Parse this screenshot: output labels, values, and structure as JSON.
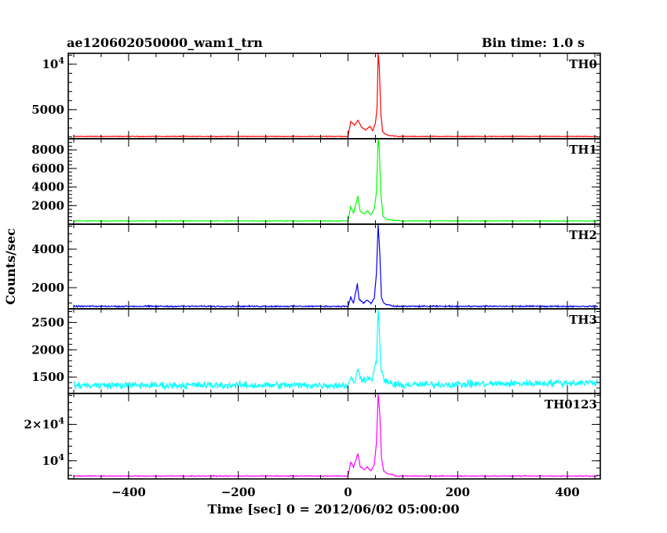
{
  "chart_data": {
    "type": "line",
    "title_left": "ae120602050000_wam1_trn",
    "title_right": "Bin time: 1.0 s",
    "xlabel": "Time [sec] 0 = 2012/06/02 05:00:00",
    "ylabel": "Counts/sec",
    "xlim": [
      -510,
      460
    ],
    "xticks": [
      -400,
      -200,
      0,
      200,
      400
    ],
    "grid": false,
    "panels": [
      {
        "name": "TH0",
        "color": "#ff0000",
        "ylim": [
          1800,
          11200
        ],
        "yticks": [
          5000,
          10000
        ],
        "ytick_labels": [
          "5000",
          "10^4"
        ],
        "baseline": 2050,
        "noise": 30,
        "slope": 0,
        "points": [
          [
            0,
            2050
          ],
          [
            5,
            3700
          ],
          [
            12,
            3300
          ],
          [
            18,
            3850
          ],
          [
            25,
            3050
          ],
          [
            32,
            2750
          ],
          [
            40,
            3150
          ],
          [
            45,
            2700
          ],
          [
            50,
            3500
          ],
          [
            53,
            5200
          ],
          [
            55,
            11200
          ],
          [
            57,
            9800
          ],
          [
            60,
            4500
          ],
          [
            63,
            2600
          ],
          [
            68,
            2300
          ],
          [
            75,
            2150
          ],
          [
            90,
            2080
          ]
        ]
      },
      {
        "name": "TH1",
        "color": "#00ff00",
        "ylim": [
          0,
          9200
        ],
        "yticks": [
          2000,
          4000,
          6000,
          8000
        ],
        "ytick_labels": [
          "2000",
          "4000",
          "6000",
          "8000"
        ],
        "baseline": 350,
        "noise": 35,
        "slope": 0,
        "points": [
          [
            0,
            350
          ],
          [
            5,
            1900
          ],
          [
            10,
            1200
          ],
          [
            18,
            3000
          ],
          [
            22,
            1400
          ],
          [
            30,
            1100
          ],
          [
            35,
            1450
          ],
          [
            42,
            1000
          ],
          [
            48,
            1650
          ],
          [
            52,
            3500
          ],
          [
            55,
            9200
          ],
          [
            57,
            8200
          ],
          [
            60,
            3200
          ],
          [
            64,
            800
          ],
          [
            70,
            550
          ],
          [
            80,
            420
          ],
          [
            95,
            380
          ]
        ]
      },
      {
        "name": "TH2",
        "color": "#0000ee",
        "ylim": [
          900,
          5300
        ],
        "yticks": [
          2000,
          4000
        ],
        "ytick_labels": [
          "2000",
          "4000"
        ],
        "baseline": 1030,
        "noise": 30,
        "slope": 0,
        "points": [
          [
            0,
            1030
          ],
          [
            5,
            1500
          ],
          [
            10,
            1180
          ],
          [
            17,
            2200
          ],
          [
            20,
            1400
          ],
          [
            28,
            1200
          ],
          [
            35,
            1350
          ],
          [
            42,
            1180
          ],
          [
            48,
            1450
          ],
          [
            52,
            2800
          ],
          [
            55,
            5300
          ],
          [
            58,
            3800
          ],
          [
            61,
            1500
          ],
          [
            66,
            1150
          ],
          [
            80,
            1060
          ]
        ]
      },
      {
        "name": "TH3",
        "color": "#00ffff",
        "ylim": [
          1200,
          2750
        ],
        "yticks": [
          1500,
          2000,
          2500
        ],
        "ytick_labels": [
          "1500",
          "2000",
          "2500"
        ],
        "baseline": 1350,
        "noise": 55,
        "slope": 0.13,
        "points": [
          [
            0,
            1380
          ],
          [
            5,
            1460
          ],
          [
            12,
            1420
          ],
          [
            18,
            1620
          ],
          [
            25,
            1470
          ],
          [
            35,
            1460
          ],
          [
            45,
            1490
          ],
          [
            52,
            1800
          ],
          [
            55,
            2750
          ],
          [
            57,
            2400
          ],
          [
            60,
            1650
          ],
          [
            66,
            1430
          ],
          [
            80,
            1400
          ]
        ]
      },
      {
        "name": "TH0123",
        "color": "#ff00ff",
        "ylim": [
          5000,
          28500
        ],
        "yticks": [
          10000,
          20000
        ],
        "ytick_labels": [
          "10^4",
          "2×10^4"
        ],
        "baseline": 5800,
        "noise": 100,
        "slope": 0,
        "points": [
          [
            0,
            5800
          ],
          [
            5,
            9600
          ],
          [
            10,
            8200
          ],
          [
            18,
            12000
          ],
          [
            22,
            8500
          ],
          [
            30,
            7500
          ],
          [
            35,
            8300
          ],
          [
            42,
            7200
          ],
          [
            48,
            9000
          ],
          [
            52,
            15000
          ],
          [
            55,
            28500
          ],
          [
            58,
            23000
          ],
          [
            61,
            11000
          ],
          [
            65,
            7200
          ],
          [
            72,
            6400
          ],
          [
            85,
            6050
          ]
        ]
      }
    ]
  }
}
